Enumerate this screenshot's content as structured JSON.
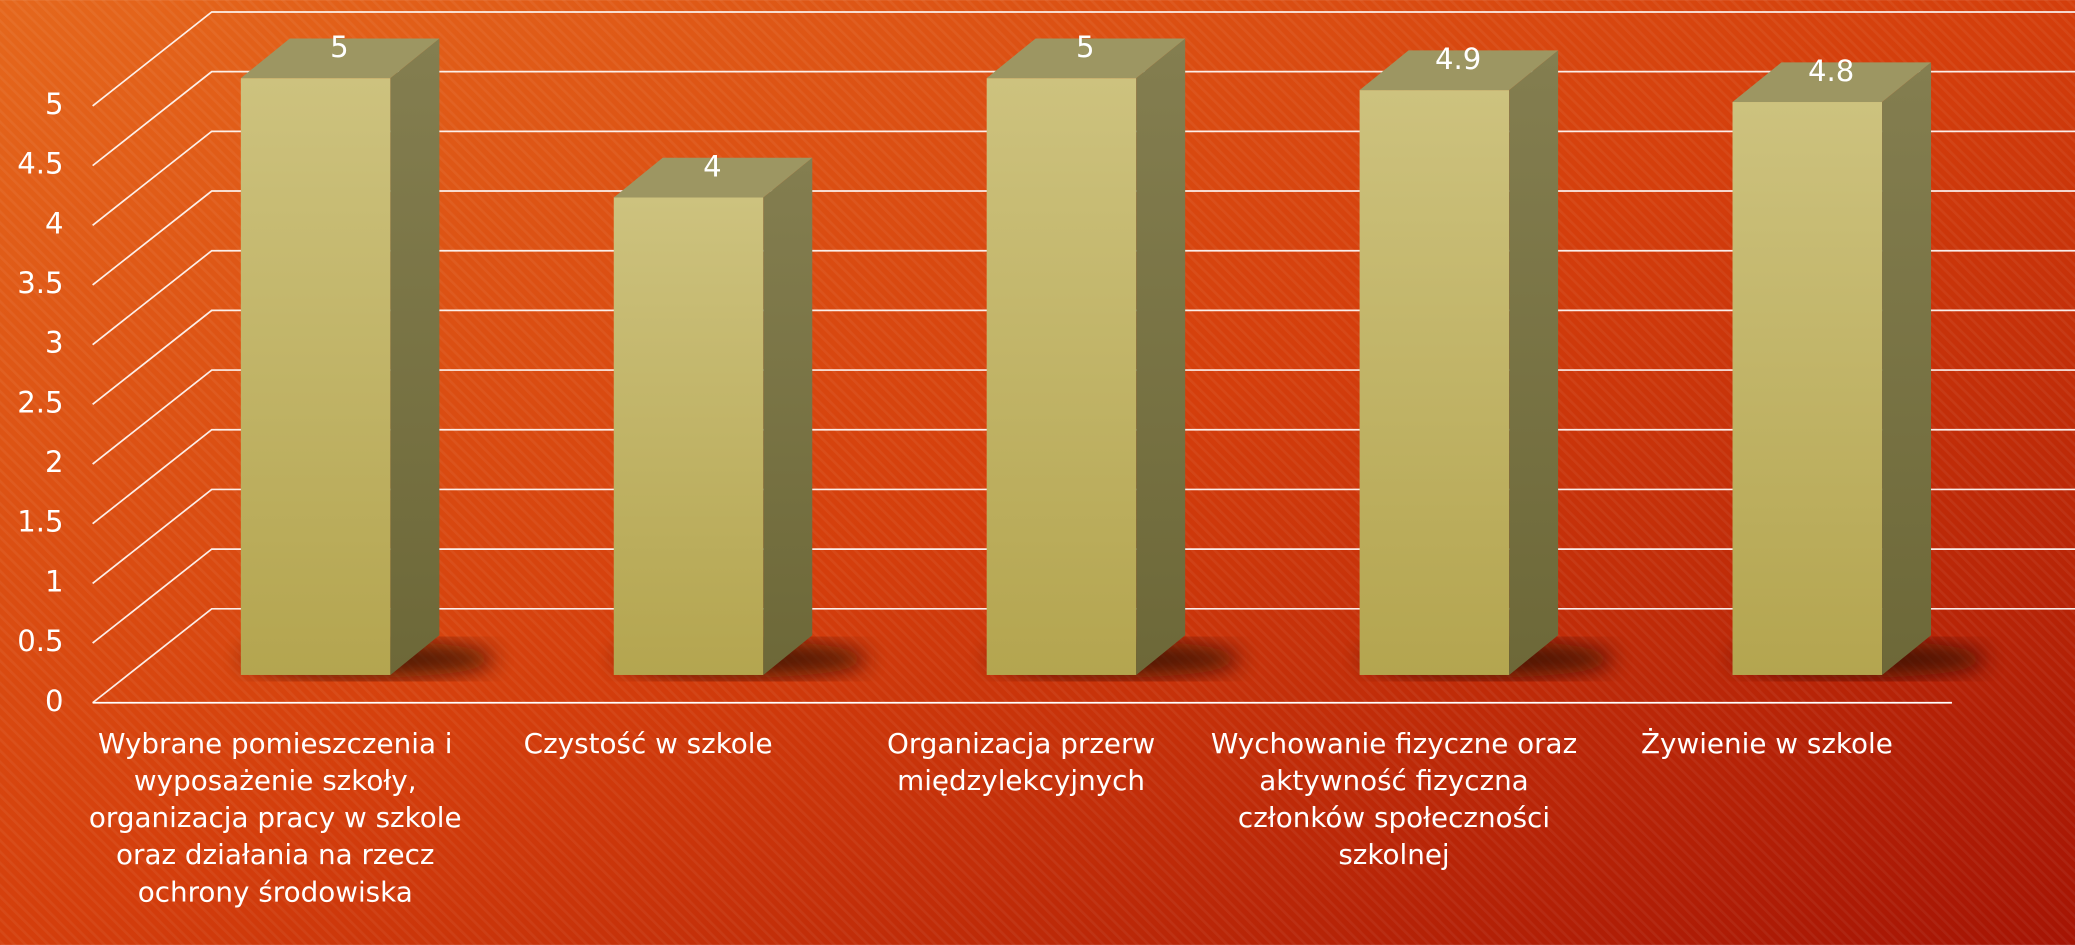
{
  "chart_data": {
    "type": "bar",
    "categories": [
      "Wybrane pomieszczenia i wyposażenie szkoły, organizacja pracy w szkole oraz działania na rzecz ochrony środowiska",
      "Czystość w szkole",
      "Organizacja przerw międzylekcyjnych",
      "Wychowanie fizyczne oraz aktywność fizyczna członków społeczności szkolnej",
      "Żywienie w szkole"
    ],
    "values": [
      5,
      4,
      5,
      4.9,
      4.8
    ],
    "color": "#c4b96e",
    "ylim": [
      0,
      5
    ],
    "yticks": [
      0,
      0.5,
      1,
      1.5,
      2,
      2.5,
      3,
      3.5,
      4,
      4.5,
      5
    ],
    "grid": true
  }
}
